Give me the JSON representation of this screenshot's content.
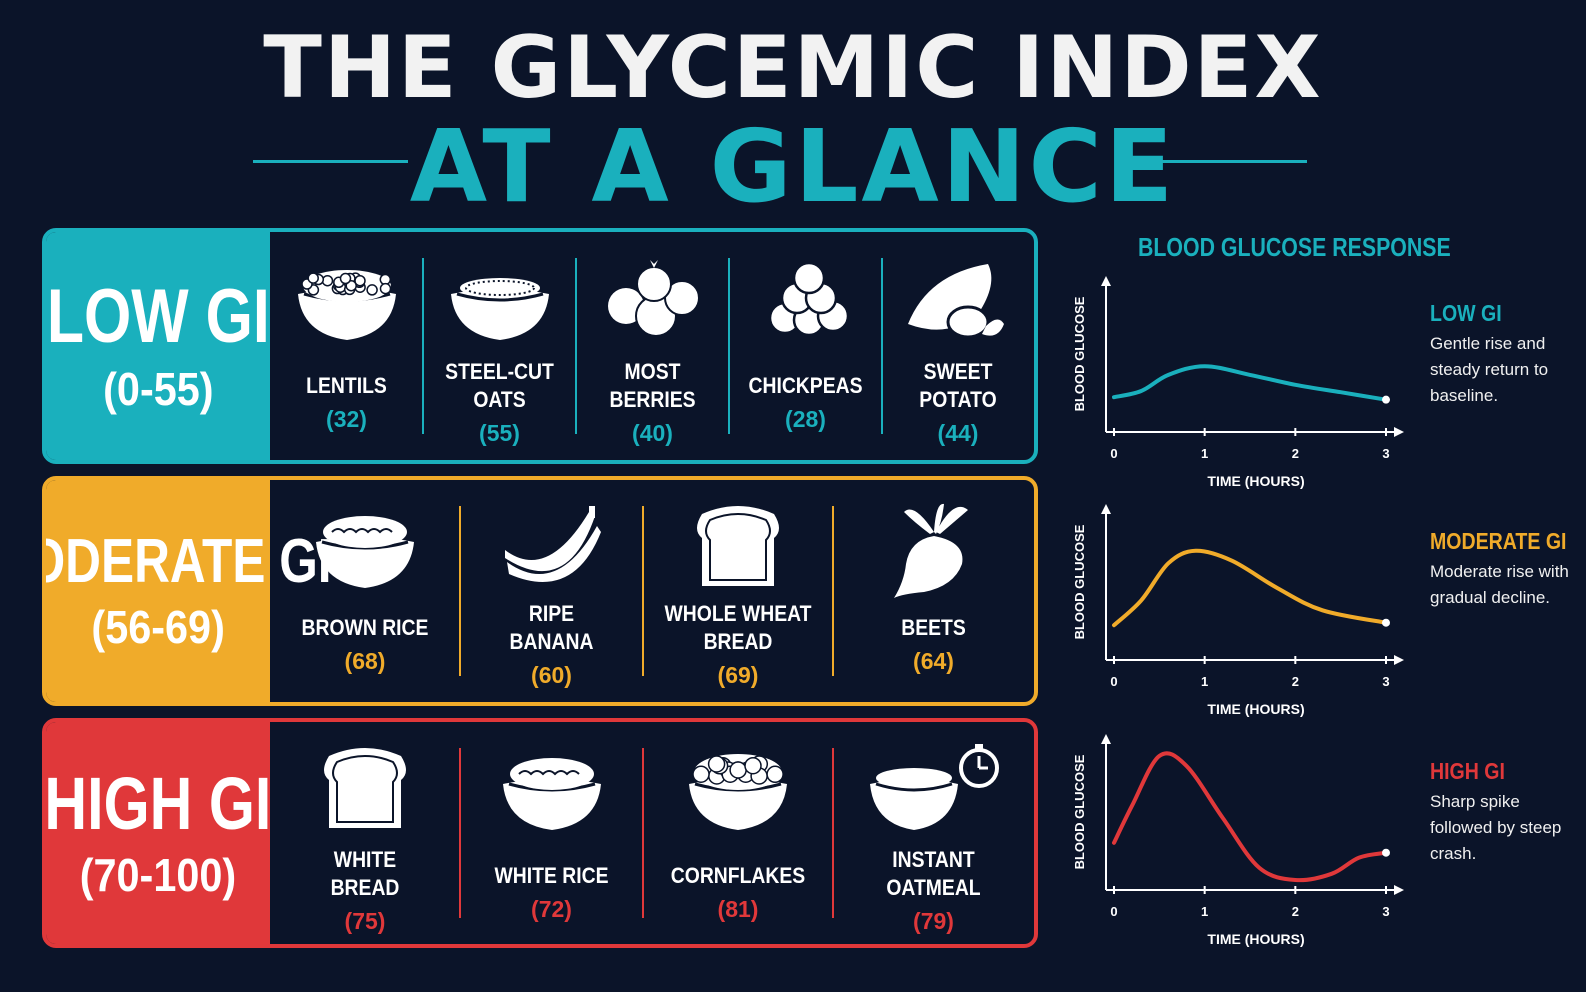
{
  "title": {
    "line1": "THE GLYCEMIC INDEX",
    "line2": "AT A GLANCE"
  },
  "colors": {
    "low": "#1ab0bd",
    "moderate": "#f0ab2a",
    "high": "#e0383a",
    "bg": "#0b1429"
  },
  "categories": [
    {
      "key": "low",
      "name": "LOW GI",
      "range": "(0-55)",
      "items": [
        {
          "label": "LENTILS",
          "value": "(32)",
          "icon": "lentils-bowl-icon"
        },
        {
          "label": "STEEL-CUT OATS",
          "value": "(55)",
          "icon": "oats-bowl-icon"
        },
        {
          "label": "MOST BERRIES",
          "value": "(40)",
          "icon": "berries-icon"
        },
        {
          "label": "CHICKPEAS",
          "value": "(28)",
          "icon": "chickpeas-icon"
        },
        {
          "label": "SWEET POTATO",
          "value": "(44)",
          "icon": "sweet-potato-icon"
        }
      ]
    },
    {
      "key": "moderate",
      "name": "MODERATE GI",
      "range": "(56-69)",
      "items": [
        {
          "label": "BROWN RICE",
          "value": "(68)",
          "icon": "rice-bowl-icon"
        },
        {
          "label": "RIPE BANANA",
          "value": "(60)",
          "icon": "banana-icon"
        },
        {
          "label": "WHOLE WHEAT BREAD",
          "value": "(69)",
          "icon": "bread-slice-icon"
        },
        {
          "label": "BEETS",
          "value": "(64)",
          "icon": "beet-icon"
        }
      ]
    },
    {
      "key": "high",
      "name": "HIGH GI",
      "range": "(70-100)",
      "items": [
        {
          "label": "WHITE BREAD",
          "value": "(75)",
          "icon": "bread-slice-icon"
        },
        {
          "label": "WHITE RICE",
          "value": "(72)",
          "icon": "rice-bowl-icon"
        },
        {
          "label": "CORNFLAKES",
          "value": "(81)",
          "icon": "cereal-bowl-icon"
        },
        {
          "label": "INSTANT OATMEAL",
          "value": "(79)",
          "icon": "oatmeal-stopwatch-icon"
        }
      ]
    }
  ],
  "response": {
    "title": "BLOOD GLUCOSE RESPONSE",
    "ylabel": "BLOOD GLUCOSE",
    "xlabel": "TIME (HOURS)",
    "x_ticks": [
      "0",
      "1",
      "2",
      "3"
    ],
    "charts": [
      {
        "key": "low",
        "label": "LOW GI",
        "desc": "Gentle rise and steady return to baseline.",
        "x": [
          0,
          0.3,
          0.6,
          1.0,
          1.5,
          2.0,
          2.5,
          3.0
        ],
        "y": [
          0.2,
          0.25,
          0.38,
          0.45,
          0.38,
          0.3,
          0.24,
          0.18
        ]
      },
      {
        "key": "moderate",
        "label": "MODERATE GI",
        "desc": "Moderate rise with gradual decline.",
        "x": [
          0,
          0.3,
          0.6,
          0.9,
          1.3,
          1.8,
          2.3,
          3.0
        ],
        "y": [
          0.2,
          0.4,
          0.7,
          0.8,
          0.72,
          0.5,
          0.32,
          0.22
        ]
      },
      {
        "key": "high",
        "label": "HIGH GI",
        "desc": "Sharp spike followed by steep crash.",
        "x": [
          0,
          0.2,
          0.5,
          0.8,
          1.2,
          1.6,
          2.0,
          2.4,
          2.7,
          3.0
        ],
        "y": [
          0.3,
          0.6,
          1.0,
          0.92,
          0.5,
          0.1,
          0.0,
          0.05,
          0.18,
          0.22
        ]
      }
    ]
  }
}
